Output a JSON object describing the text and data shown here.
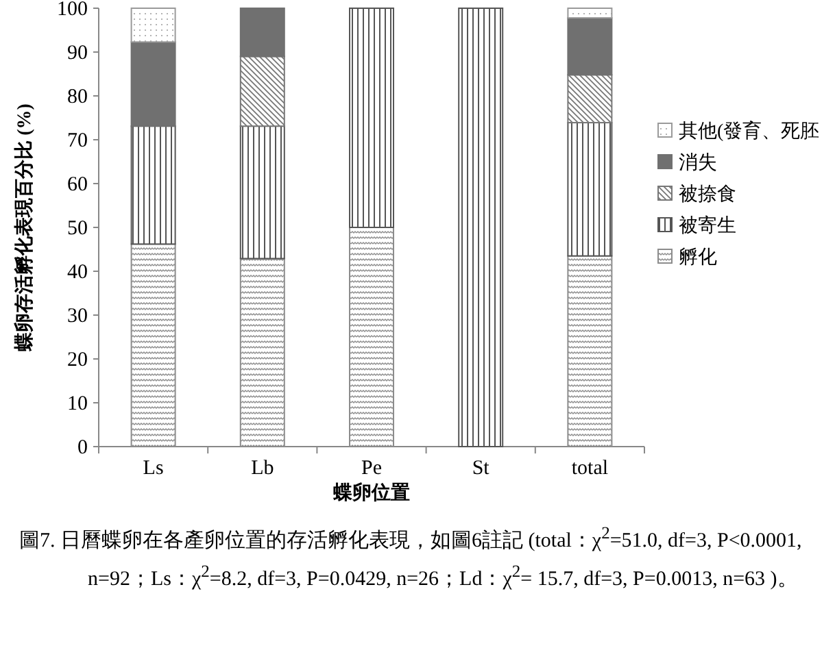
{
  "chart_data": {
    "type": "bar",
    "stacked": true,
    "categories": [
      "Ls",
      "Lb",
      "Pe",
      "St",
      "total"
    ],
    "series": [
      {
        "name": "孵化",
        "color": "#8c8c8c",
        "values": [
          46.2,
          42.9,
          50,
          0,
          43.5
        ]
      },
      {
        "name": "被寄生",
        "color": "#555555",
        "values": [
          26.9,
          30.2,
          50,
          100,
          30.4
        ]
      },
      {
        "name": "被捺食",
        "color": "#777777",
        "values": [
          0,
          15.9,
          0,
          0,
          10.9
        ]
      },
      {
        "name": "消失",
        "color": "#707070",
        "values": [
          19.2,
          11.0,
          0,
          0,
          13.0
        ]
      },
      {
        "name": "其他(發育、死胚",
        "color": "#9a9a9a",
        "values": [
          7.7,
          0,
          0,
          0,
          2.2
        ]
      }
    ],
    "ylim": [
      0,
      100
    ],
    "yticks": [
      0,
      10,
      20,
      30,
      40,
      50,
      60,
      70,
      80,
      90,
      100
    ],
    "xlabel": "蝶卵位置",
    "ylabel": "蝶卵存活孵化表現百分比 (%)",
    "legend": "right",
    "grid": false,
    "annotations": [
      "圖7. 日曆蝶卵在各產卵位置的存活孵化表現，如圖6註記 (total：χ$^{2}$=51.0, df=3, P<0.0001, n=92；Ls：χ$^{2}$=8.2, df=3, P=0.0429, n=26；Ld：χ$^{2}$= 15.7, df=3, P=0.0013, n=63 )。"
    ]
  }
}
